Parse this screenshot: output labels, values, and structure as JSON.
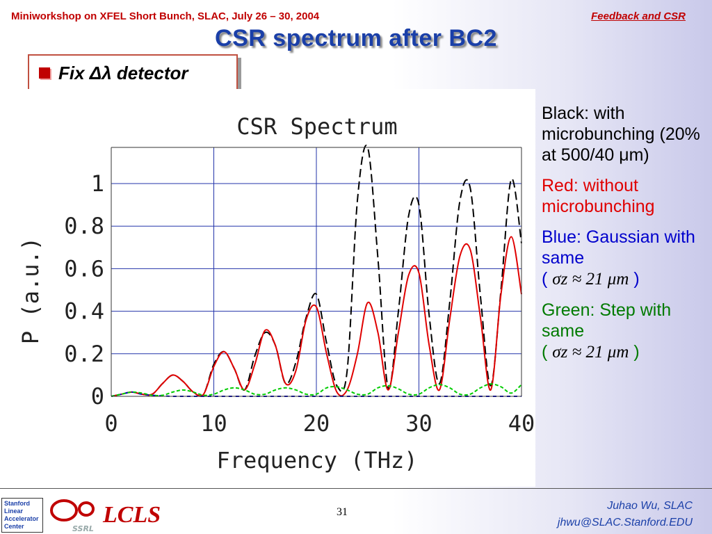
{
  "header": {
    "left": "Miniworkshop on XFEL Short Bunch, SLAC, July 26 – 30, 2004",
    "right": "Feedback and CSR"
  },
  "slide_title": "CSR spectrum after BC2",
  "bullet": "Fix Δλ detector",
  "legend": {
    "black": "Black: with microbunching (20% at 500/40 μm)",
    "red": "Red: without microbunching",
    "blue_text": "Blue: Gaussian with same",
    "green_text": "Green: Step with same",
    "sigma_expr": "σz ≈ 21 μm",
    "open_paren": "(",
    "close_paren": ")"
  },
  "footer": {
    "logo_text": "LCLS",
    "page": "31",
    "author": "Juhao Wu, SLAC",
    "email": "jhwu@SLAC.Stanford.EDU",
    "slac_lines": [
      "Stanford",
      "Linear",
      "Accelerator",
      "Center"
    ],
    "ssrl_label": "SSRL"
  },
  "colors": {
    "black": "#000000",
    "red": "#e00000",
    "blue": "#0000cc",
    "green": "#00cc00",
    "title": "#1a3fa8"
  },
  "chart_data": {
    "type": "line",
    "title": "CSR Spectrum",
    "xlabel": "Frequency (THz)",
    "ylabel": "P (a.u.)",
    "xlim": [
      0,
      40
    ],
    "ylim": [
      0,
      1.17
    ],
    "xticks": [
      0,
      10,
      20,
      30,
      40
    ],
    "yticks": [
      0,
      0.2,
      0.4,
      0.6,
      0.8,
      1
    ],
    "grid": true,
    "series": [
      {
        "name": "Black: with microbunching",
        "color": "#000000",
        "dash": "12 6",
        "x": [
          0,
          1,
          2,
          3,
          4,
          5,
          6,
          7,
          8,
          9,
          10,
          11,
          12,
          13,
          14,
          15,
          16,
          17,
          18,
          19,
          20,
          21,
          22,
          23,
          24,
          25,
          26,
          27,
          28,
          29,
          30,
          31,
          32,
          33,
          34,
          35,
          36,
          37,
          38,
          39,
          40
        ],
        "y": [
          0,
          0.01,
          0.02,
          0.01,
          0.01,
          0.06,
          0.1,
          0.07,
          0.02,
          0.01,
          0.15,
          0.21,
          0.13,
          0.03,
          0.19,
          0.3,
          0.24,
          0.06,
          0.16,
          0.37,
          0.48,
          0.25,
          0.05,
          0.12,
          0.92,
          1.17,
          0.65,
          0.04,
          0.4,
          0.85,
          0.9,
          0.38,
          0.06,
          0.44,
          0.92,
          0.98,
          0.47,
          0.05,
          0.5,
          1.02,
          0.72
        ]
      },
      {
        "name": "Red: without microbunching",
        "color": "#e00000",
        "dash": "",
        "x": [
          0,
          1,
          2,
          3,
          4,
          5,
          6,
          7,
          8,
          9,
          10,
          11,
          12,
          13,
          14,
          15,
          16,
          17,
          18,
          19,
          20,
          21,
          22,
          23,
          24,
          25,
          26,
          27,
          28,
          29,
          30,
          31,
          32,
          33,
          34,
          35,
          36,
          37,
          38,
          39,
          40
        ],
        "y": [
          0,
          0.01,
          0.02,
          0.01,
          0.01,
          0.06,
          0.1,
          0.07,
          0.02,
          0.01,
          0.14,
          0.21,
          0.13,
          0.03,
          0.15,
          0.31,
          0.24,
          0.06,
          0.12,
          0.36,
          0.42,
          0.2,
          0.02,
          0.03,
          0.2,
          0.44,
          0.3,
          0.03,
          0.3,
          0.57,
          0.58,
          0.24,
          0.03,
          0.36,
          0.66,
          0.69,
          0.37,
          0.03,
          0.48,
          0.75,
          0.48
        ]
      },
      {
        "name": "Blue: Gaussian",
        "color": "#0000cc",
        "dash": "5 5",
        "x": [
          0,
          1,
          2,
          3,
          4,
          5,
          6,
          7,
          8,
          9,
          10,
          15,
          20,
          25,
          30,
          35,
          40
        ],
        "y": [
          0,
          0.01,
          0.02,
          0.01,
          0.005,
          0.002,
          0,
          0,
          0,
          0,
          0,
          0,
          0,
          0,
          0,
          0,
          0
        ]
      },
      {
        "name": "Green: Step",
        "color": "#00cc00",
        "dash": "5 3",
        "x": [
          0,
          1,
          2,
          3,
          4,
          5,
          6,
          7,
          8,
          9,
          10,
          11,
          12,
          13,
          14,
          15,
          16,
          17,
          18,
          19,
          20,
          21,
          22,
          23,
          24,
          25,
          26,
          27,
          28,
          29,
          30,
          31,
          32,
          33,
          34,
          35,
          36,
          37,
          38,
          39,
          40
        ],
        "y": [
          0,
          0.01,
          0.02,
          0.015,
          0.005,
          0.005,
          0.02,
          0.03,
          0.02,
          0.005,
          0.01,
          0.03,
          0.04,
          0.03,
          0.01,
          0.01,
          0.03,
          0.04,
          0.03,
          0.01,
          0.01,
          0.04,
          0.045,
          0.03,
          0.01,
          0.01,
          0.04,
          0.05,
          0.035,
          0.01,
          0.01,
          0.04,
          0.055,
          0.04,
          0.01,
          0.01,
          0.04,
          0.058,
          0.045,
          0.015,
          0.055
        ]
      }
    ]
  }
}
